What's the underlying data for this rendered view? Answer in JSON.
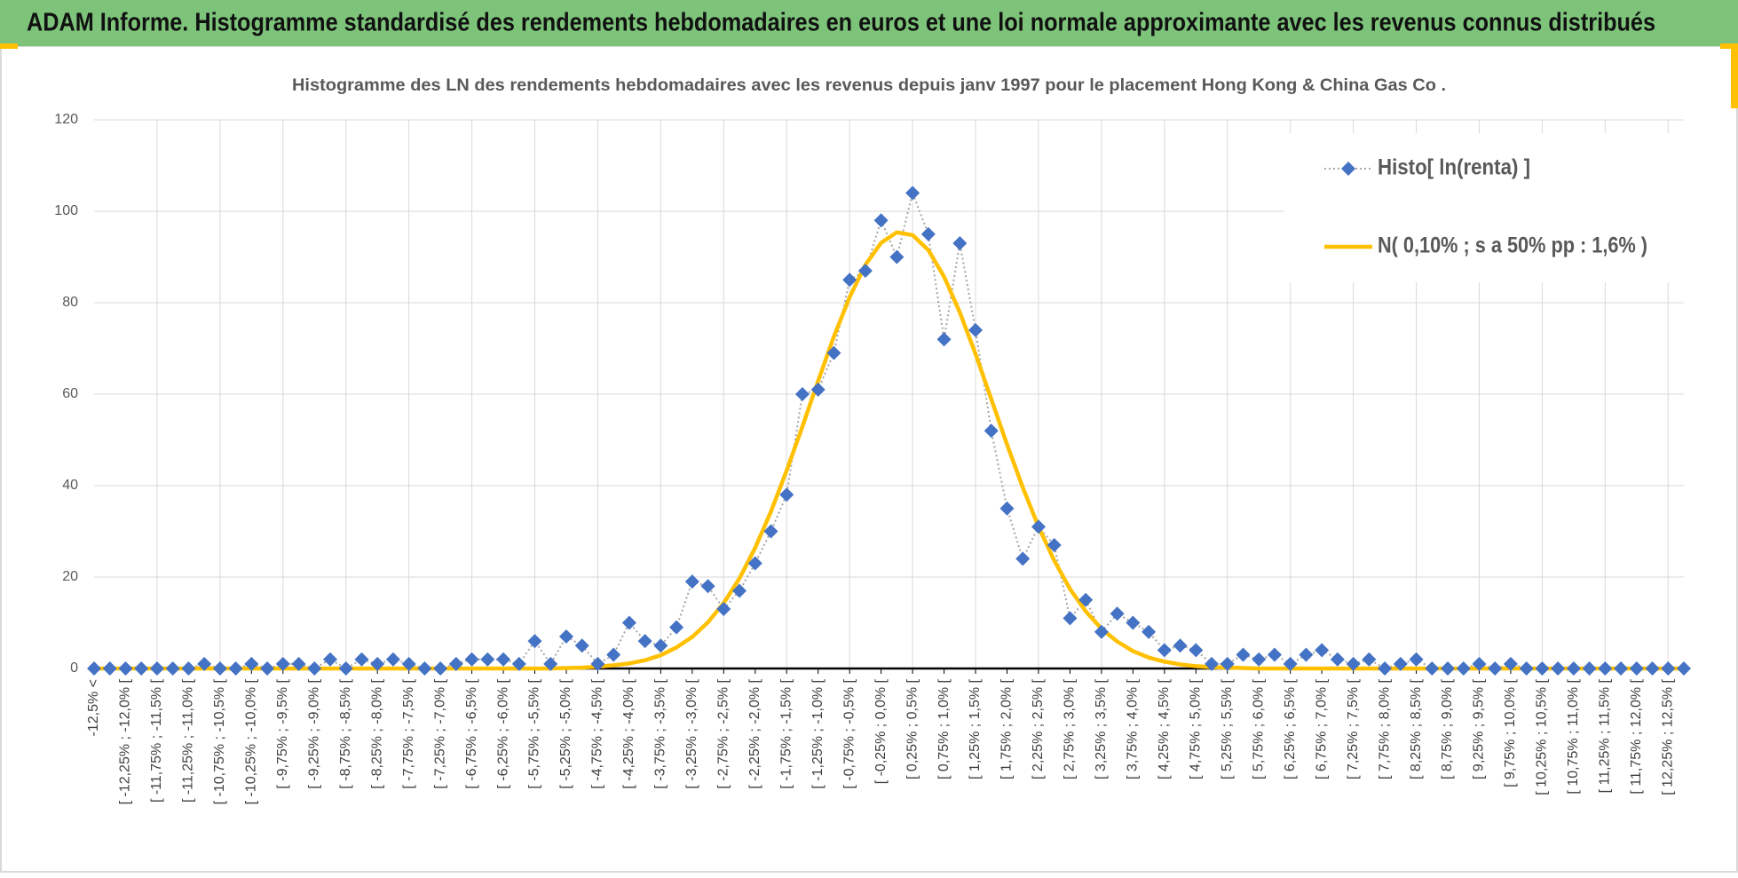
{
  "header": {
    "title": "ADAM Informe. Histogramme standardisé des rendements hebdomadaires en euros et une loi normale approximante avec les revenus connus distribués"
  },
  "chart_data": {
    "type": "line",
    "title": "Histogramme des LN des rendements hebdomadaires avec les revenus depuis janv 1997 pour le placement Hong Kong & China Gas Co .",
    "categories": [
      "-12,5% <",
      null,
      "[ -12,25% ; -12,0% [",
      null,
      "[ -11,75% ; -11,5% [",
      null,
      "[ -11,25% ; -11,0% [",
      null,
      "[ -10,75% ; -10,5% [",
      null,
      "[ -10,25% ; -10,0% [",
      null,
      "[ -9,75% ; -9,5% [",
      null,
      "[ -9,25% ; -9,0% [",
      null,
      "[ -8,75% ; -8,5% [",
      null,
      "[ -8,25% ; -8,0% [",
      null,
      "[ -7,75% ; -7,5% [",
      null,
      "[ -7,25% ; -7,0% [",
      null,
      "[ -6,75% ; -6,5% [",
      null,
      "[ -6,25% ; -6,0% [",
      null,
      "[ -5,75% ; -5,5% [",
      null,
      "[ -5,25% ; -5,0% [",
      null,
      "[ -4,75% ; -4,5% [",
      null,
      "[ -4,25% ; -4,0% [",
      null,
      "[ -3,75% ; -3,5% [",
      null,
      "[ -3,25% ; -3,0% [",
      null,
      "[ -2,75% ; -2,5% [",
      null,
      "[ -2,25% ; -2,0% [",
      null,
      "[ -1,75% ; -1,5% [",
      null,
      "[ -1,25% ; -1,0% [",
      null,
      "[ -0,75% ; -0,5% [",
      null,
      "[ -0,25% ; 0,0% [",
      null,
      "[ 0,25% ; 0,5% [",
      null,
      "[ 0,75% ; 1,0% [",
      null,
      "[ 1,25% ; 1,5% [",
      null,
      "[ 1,75% ; 2,0% [",
      null,
      "[ 2,25% ; 2,5% [",
      null,
      "[ 2,75% ; 3,0% [",
      null,
      "[ 3,25% ; 3,5% [",
      null,
      "[ 3,75% ; 4,0% [",
      null,
      "[ 4,25% ; 4,5% [",
      null,
      "[ 4,75% ; 5,0% [",
      null,
      "[ 5,25% ; 5,5% [",
      null,
      "[ 5,75% ; 6,0% [",
      null,
      "[ 6,25% ; 6,5% [",
      null,
      "[ 6,75% ; 7,0% [",
      null,
      "[ 7,25% ; 7,5% [",
      null,
      "[ 7,75% ; 8,0% [",
      null,
      "[ 8,25% ; 8,5% [",
      null,
      "[ 8,75% ; 9,0% [",
      null,
      "[ 9,25% ; 9,5% [",
      null,
      "[ 9,75% ; 10,0% [",
      null,
      "[ 10,25% ; 10,5% [",
      null,
      "[ 10,75% ; 11,0% [",
      null,
      "[ 11,25% ; 11,5% [",
      null,
      "[ 11,75% ; 12,0% [",
      null,
      "[ 12,25% ; 12,5% [",
      null
    ],
    "series": [
      {
        "name": "Histo[ ln(renta) ]",
        "color": "#4472c4",
        "line_color": "#a6a6a6",
        "line_style": "dotted",
        "marker": "diamond",
        "values": [
          0,
          0,
          0,
          0,
          0,
          0,
          0,
          1,
          0,
          0,
          1,
          0,
          1,
          1,
          0,
          2,
          0,
          2,
          1,
          2,
          1,
          0,
          0,
          1,
          2,
          2,
          2,
          1,
          6,
          1,
          7,
          5,
          1,
          3,
          10,
          6,
          5,
          9,
          19,
          18,
          13,
          17,
          23,
          30,
          38,
          60,
          61,
          69,
          85,
          87,
          98,
          90,
          104,
          95,
          72,
          93,
          74,
          52,
          35,
          24,
          31,
          27,
          11,
          15,
          8,
          12,
          10,
          8,
          4,
          5,
          4,
          1,
          1,
          3,
          2,
          3,
          1,
          3,
          4,
          2,
          1,
          2,
          0,
          1,
          2,
          0,
          0,
          0,
          1,
          0,
          1,
          0,
          0,
          0,
          0,
          0,
          0,
          0,
          0,
          0,
          0,
          0
        ]
      },
      {
        "name": "N( 0,10% ; s a 50% pp : 1,6% )",
        "color": "#ffc000",
        "line_style": "solid",
        "marker": "none",
        "values": [
          0,
          0,
          0,
          0,
          0,
          0,
          0,
          0,
          0,
          0,
          0,
          0,
          0,
          0,
          0,
          0,
          0,
          0,
          0,
          0,
          0,
          0,
          0,
          0,
          0,
          0,
          0,
          0,
          0,
          0,
          0.1,
          0.2,
          0.4,
          0.7,
          1.1,
          1.8,
          2.9,
          4.6,
          6.9,
          10.1,
          14.3,
          19.7,
          26.4,
          34.3,
          43.3,
          52.9,
          62.9,
          72.6,
          81.2,
          88.3,
          93.1,
          95.4,
          94.8,
          91.5,
          85.7,
          77.9,
          68.8,
          58.9,
          49.0,
          39.6,
          31.0,
          23.6,
          17.4,
          12.5,
          8.7,
          5.9,
          3.8,
          2.4,
          1.5,
          0.9,
          0.5,
          0.3,
          0.2,
          0.1,
          0,
          0,
          0,
          0,
          0,
          0,
          0,
          0,
          0,
          0,
          0,
          0,
          0,
          0,
          0,
          0,
          0,
          0,
          0,
          0,
          0,
          0,
          0,
          0,
          0,
          0,
          0,
          0
        ]
      }
    ],
    "ylim": [
      0,
      120
    ],
    "yticks": [
      0,
      20,
      40,
      60,
      80,
      100,
      120
    ],
    "grid": true,
    "legend": "upper right"
  }
}
